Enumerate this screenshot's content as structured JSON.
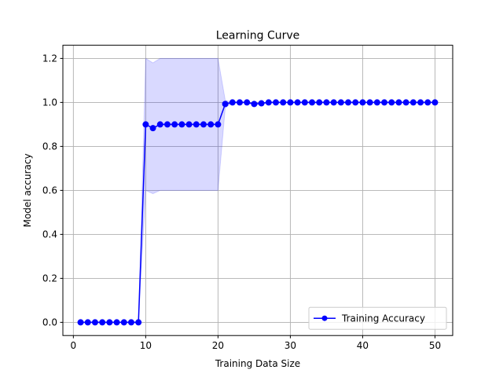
{
  "chart_data": {
    "type": "line",
    "title": "Learning Curve",
    "xlabel": "Training Data Size",
    "ylabel": "Model accuracy",
    "xlim": [
      -1.45,
      52.45
    ],
    "ylim": [
      -0.06,
      1.26
    ],
    "xticks": [
      0,
      10,
      20,
      30,
      40,
      50
    ],
    "yticks": [
      0.0,
      0.2,
      0.4,
      0.6,
      0.8,
      1.0,
      1.2
    ],
    "xtick_labels": [
      "0",
      "10",
      "20",
      "30",
      "40",
      "50"
    ],
    "ytick_labels": [
      "0.0",
      "0.2",
      "0.4",
      "0.6",
      "0.8",
      "1.0",
      "1.2"
    ],
    "grid": true,
    "legend_position": "lower-right",
    "series": [
      {
        "name": "Training Accuracy",
        "color": "#0000ff",
        "marker": "circle",
        "x": [
          1,
          2,
          3,
          4,
          5,
          6,
          7,
          8,
          9,
          10,
          11,
          12,
          13,
          14,
          15,
          16,
          17,
          18,
          19,
          20,
          21,
          22,
          23,
          24,
          25,
          26,
          27,
          28,
          29,
          30,
          31,
          32,
          33,
          34,
          35,
          36,
          37,
          38,
          39,
          40,
          41,
          42,
          43,
          44,
          45,
          46,
          47,
          48,
          49,
          50
        ],
        "values": [
          0,
          0,
          0,
          0,
          0,
          0,
          0,
          0,
          0,
          0.9,
          0.883,
          0.9,
          0.9,
          0.9,
          0.9,
          0.9,
          0.9,
          0.9,
          0.9,
          0.9,
          0.993,
          1.0,
          1.0,
          1.0,
          0.993,
          0.996,
          1.0,
          1.0,
          1.0,
          1.0,
          1.0,
          1.0,
          1.0,
          1.0,
          1.0,
          1.0,
          1.0,
          1.0,
          1.0,
          1.0,
          1.0,
          1.0,
          1.0,
          1.0,
          1.0,
          1.0,
          1.0,
          1.0,
          1.0,
          1.0
        ],
        "band_upper": [
          0,
          0,
          0,
          0,
          0,
          0,
          0,
          0,
          0,
          1.2,
          1.18,
          1.2,
          1.2,
          1.2,
          1.2,
          1.2,
          1.2,
          1.2,
          1.2,
          1.2,
          1.01,
          1.0,
          1.0,
          1.0,
          1.0,
          1.0,
          1.0,
          1.0,
          1.0,
          1.0,
          1.0,
          1.0,
          1.0,
          1.0,
          1.0,
          1.0,
          1.0,
          1.0,
          1.0,
          1.0,
          1.0,
          1.0,
          1.0,
          1.0,
          1.0,
          1.0,
          1.0,
          1.0,
          1.0,
          1.0
        ],
        "band_lower": [
          0,
          0,
          0,
          0,
          0,
          0,
          0,
          0,
          0,
          0.6,
          0.585,
          0.6,
          0.6,
          0.6,
          0.6,
          0.6,
          0.6,
          0.6,
          0.6,
          0.6,
          0.975,
          1.0,
          1.0,
          1.0,
          0.986,
          0.992,
          1.0,
          1.0,
          1.0,
          1.0,
          1.0,
          1.0,
          1.0,
          1.0,
          1.0,
          1.0,
          1.0,
          1.0,
          1.0,
          1.0,
          1.0,
          1.0,
          1.0,
          1.0,
          1.0,
          1.0,
          1.0,
          1.0,
          1.0,
          1.0
        ],
        "band_color": "#0000ff"
      }
    ]
  }
}
